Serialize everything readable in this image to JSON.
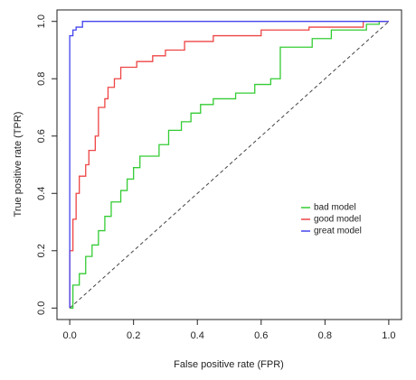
{
  "chart_data": {
    "type": "line",
    "xlabel": "False positive rate (FPR)",
    "ylabel": "True positive rate (TPR)",
    "xlim": [
      -0.04,
      1.04
    ],
    "ylim": [
      -0.04,
      1.04
    ],
    "xticks": [
      {
        "value": 0,
        "label": "0.0"
      },
      0.2,
      0.4,
      0.6,
      0.8,
      {
        "value": 1,
        "label": "1.0"
      }
    ],
    "yticks": [
      {
        "value": 0,
        "label": "0.0"
      },
      0.2,
      0.4,
      0.6,
      0.8,
      {
        "value": 1,
        "label": "1.0"
      }
    ],
    "legend": "right",
    "series": [
      {
        "name": "bad model",
        "color": "#33cc33",
        "x": [
          0,
          0.01,
          0.01,
          0.03,
          0.03,
          0.05,
          0.05,
          0.07,
          0.07,
          0.09,
          0.09,
          0.11,
          0.11,
          0.13,
          0.13,
          0.16,
          0.16,
          0.18,
          0.18,
          0.2,
          0.2,
          0.22,
          0.22,
          0.28,
          0.28,
          0.31,
          0.31,
          0.35,
          0.35,
          0.38,
          0.38,
          0.41,
          0.41,
          0.45,
          0.45,
          0.52,
          0.52,
          0.58,
          0.58,
          0.63,
          0.63,
          0.66,
          0.66,
          0.76,
          0.76,
          0.82,
          0.82,
          0.93,
          0.93,
          0.97,
          0.97,
          1
        ],
        "values": [
          0,
          0,
          0.08,
          0.08,
          0.12,
          0.12,
          0.18,
          0.18,
          0.22,
          0.22,
          0.27,
          0.27,
          0.32,
          0.32,
          0.37,
          0.37,
          0.41,
          0.41,
          0.45,
          0.45,
          0.49,
          0.49,
          0.53,
          0.53,
          0.57,
          0.57,
          0.62,
          0.62,
          0.65,
          0.65,
          0.68,
          0.68,
          0.71,
          0.71,
          0.73,
          0.73,
          0.75,
          0.75,
          0.78,
          0.78,
          0.8,
          0.8,
          0.91,
          0.91,
          0.94,
          0.94,
          0.97,
          0.97,
          0.99,
          0.99,
          1,
          1
        ]
      },
      {
        "name": "good model",
        "color": "#ee4444",
        "x": [
          0,
          0,
          0.01,
          0.01,
          0.02,
          0.02,
          0.03,
          0.03,
          0.05,
          0.05,
          0.06,
          0.06,
          0.08,
          0.08,
          0.09,
          0.09,
          0.11,
          0.11,
          0.12,
          0.12,
          0.14,
          0.14,
          0.16,
          0.16,
          0.21,
          0.21,
          0.26,
          0.26,
          0.3,
          0.3,
          0.36,
          0.36,
          0.45,
          0.45,
          0.6,
          0.6,
          0.75,
          0.75,
          0.92,
          0.92,
          1
        ],
        "values": [
          0,
          0.2,
          0.2,
          0.31,
          0.31,
          0.4,
          0.4,
          0.46,
          0.46,
          0.5,
          0.5,
          0.55,
          0.55,
          0.6,
          0.6,
          0.7,
          0.7,
          0.73,
          0.73,
          0.77,
          0.77,
          0.8,
          0.8,
          0.84,
          0.84,
          0.86,
          0.86,
          0.88,
          0.88,
          0.9,
          0.9,
          0.93,
          0.93,
          0.95,
          0.95,
          0.97,
          0.97,
          0.98,
          0.98,
          1,
          1
        ]
      },
      {
        "name": "great model",
        "color": "#4444ee",
        "x": [
          0,
          0,
          0.01,
          0.01,
          0.02,
          0.02,
          0.04,
          0.04,
          1
        ],
        "values": [
          0,
          0.95,
          0.95,
          0.97,
          0.97,
          0.98,
          0.98,
          1,
          1
        ]
      }
    ]
  }
}
